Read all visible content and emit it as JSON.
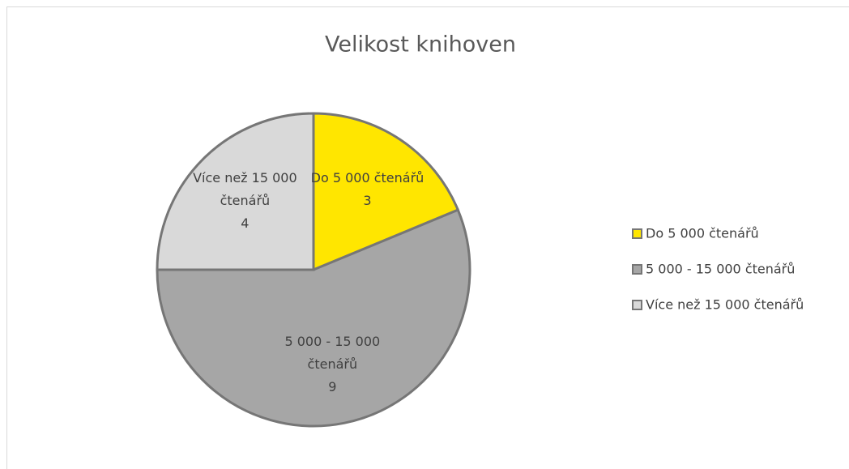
{
  "chart_data": {
    "type": "pie",
    "title": "Velikost knihoven",
    "categories": [
      "Do 5 000 čtenářů",
      "5 000 - 15 000 čtenářů",
      "Více než 15 000 čtenářů"
    ],
    "values": [
      3,
      9,
      4
    ],
    "colors": [
      "#ffe600",
      "#a6a6a6",
      "#d9d9d9"
    ],
    "legend": "right"
  }
}
